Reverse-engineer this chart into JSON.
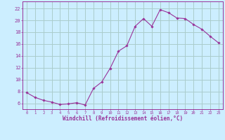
{
  "x": [
    0,
    1,
    2,
    3,
    4,
    5,
    6,
    7,
    8,
    9,
    10,
    11,
    12,
    13,
    14,
    15,
    16,
    17,
    18,
    19,
    20,
    21,
    22,
    23
  ],
  "y": [
    7.8,
    7.0,
    6.5,
    6.2,
    5.8,
    5.9,
    6.1,
    5.7,
    8.5,
    9.6,
    11.9,
    14.8,
    15.7,
    19.0,
    20.3,
    19.0,
    21.8,
    21.3,
    20.4,
    20.3,
    19.3,
    18.5,
    17.3,
    16.2
  ],
  "line_color": "#993399",
  "marker": "D",
  "marker_size": 1.8,
  "bg_color": "#cceeff",
  "grid_color": "#aacccc",
  "axis_color": "#993399",
  "tick_color": "#993399",
  "xlabel": "Windchill (Refroidissement éolien,°C)",
  "xlabel_fontsize": 5.5,
  "ytick_labels": [
    "6",
    "8",
    "10",
    "12",
    "14",
    "16",
    "18",
    "20",
    "22"
  ],
  "ytick_vals": [
    6,
    8,
    10,
    12,
    14,
    16,
    18,
    20,
    22
  ],
  "xlim": [
    -0.5,
    23.5
  ],
  "ylim": [
    5.0,
    23.2
  ]
}
